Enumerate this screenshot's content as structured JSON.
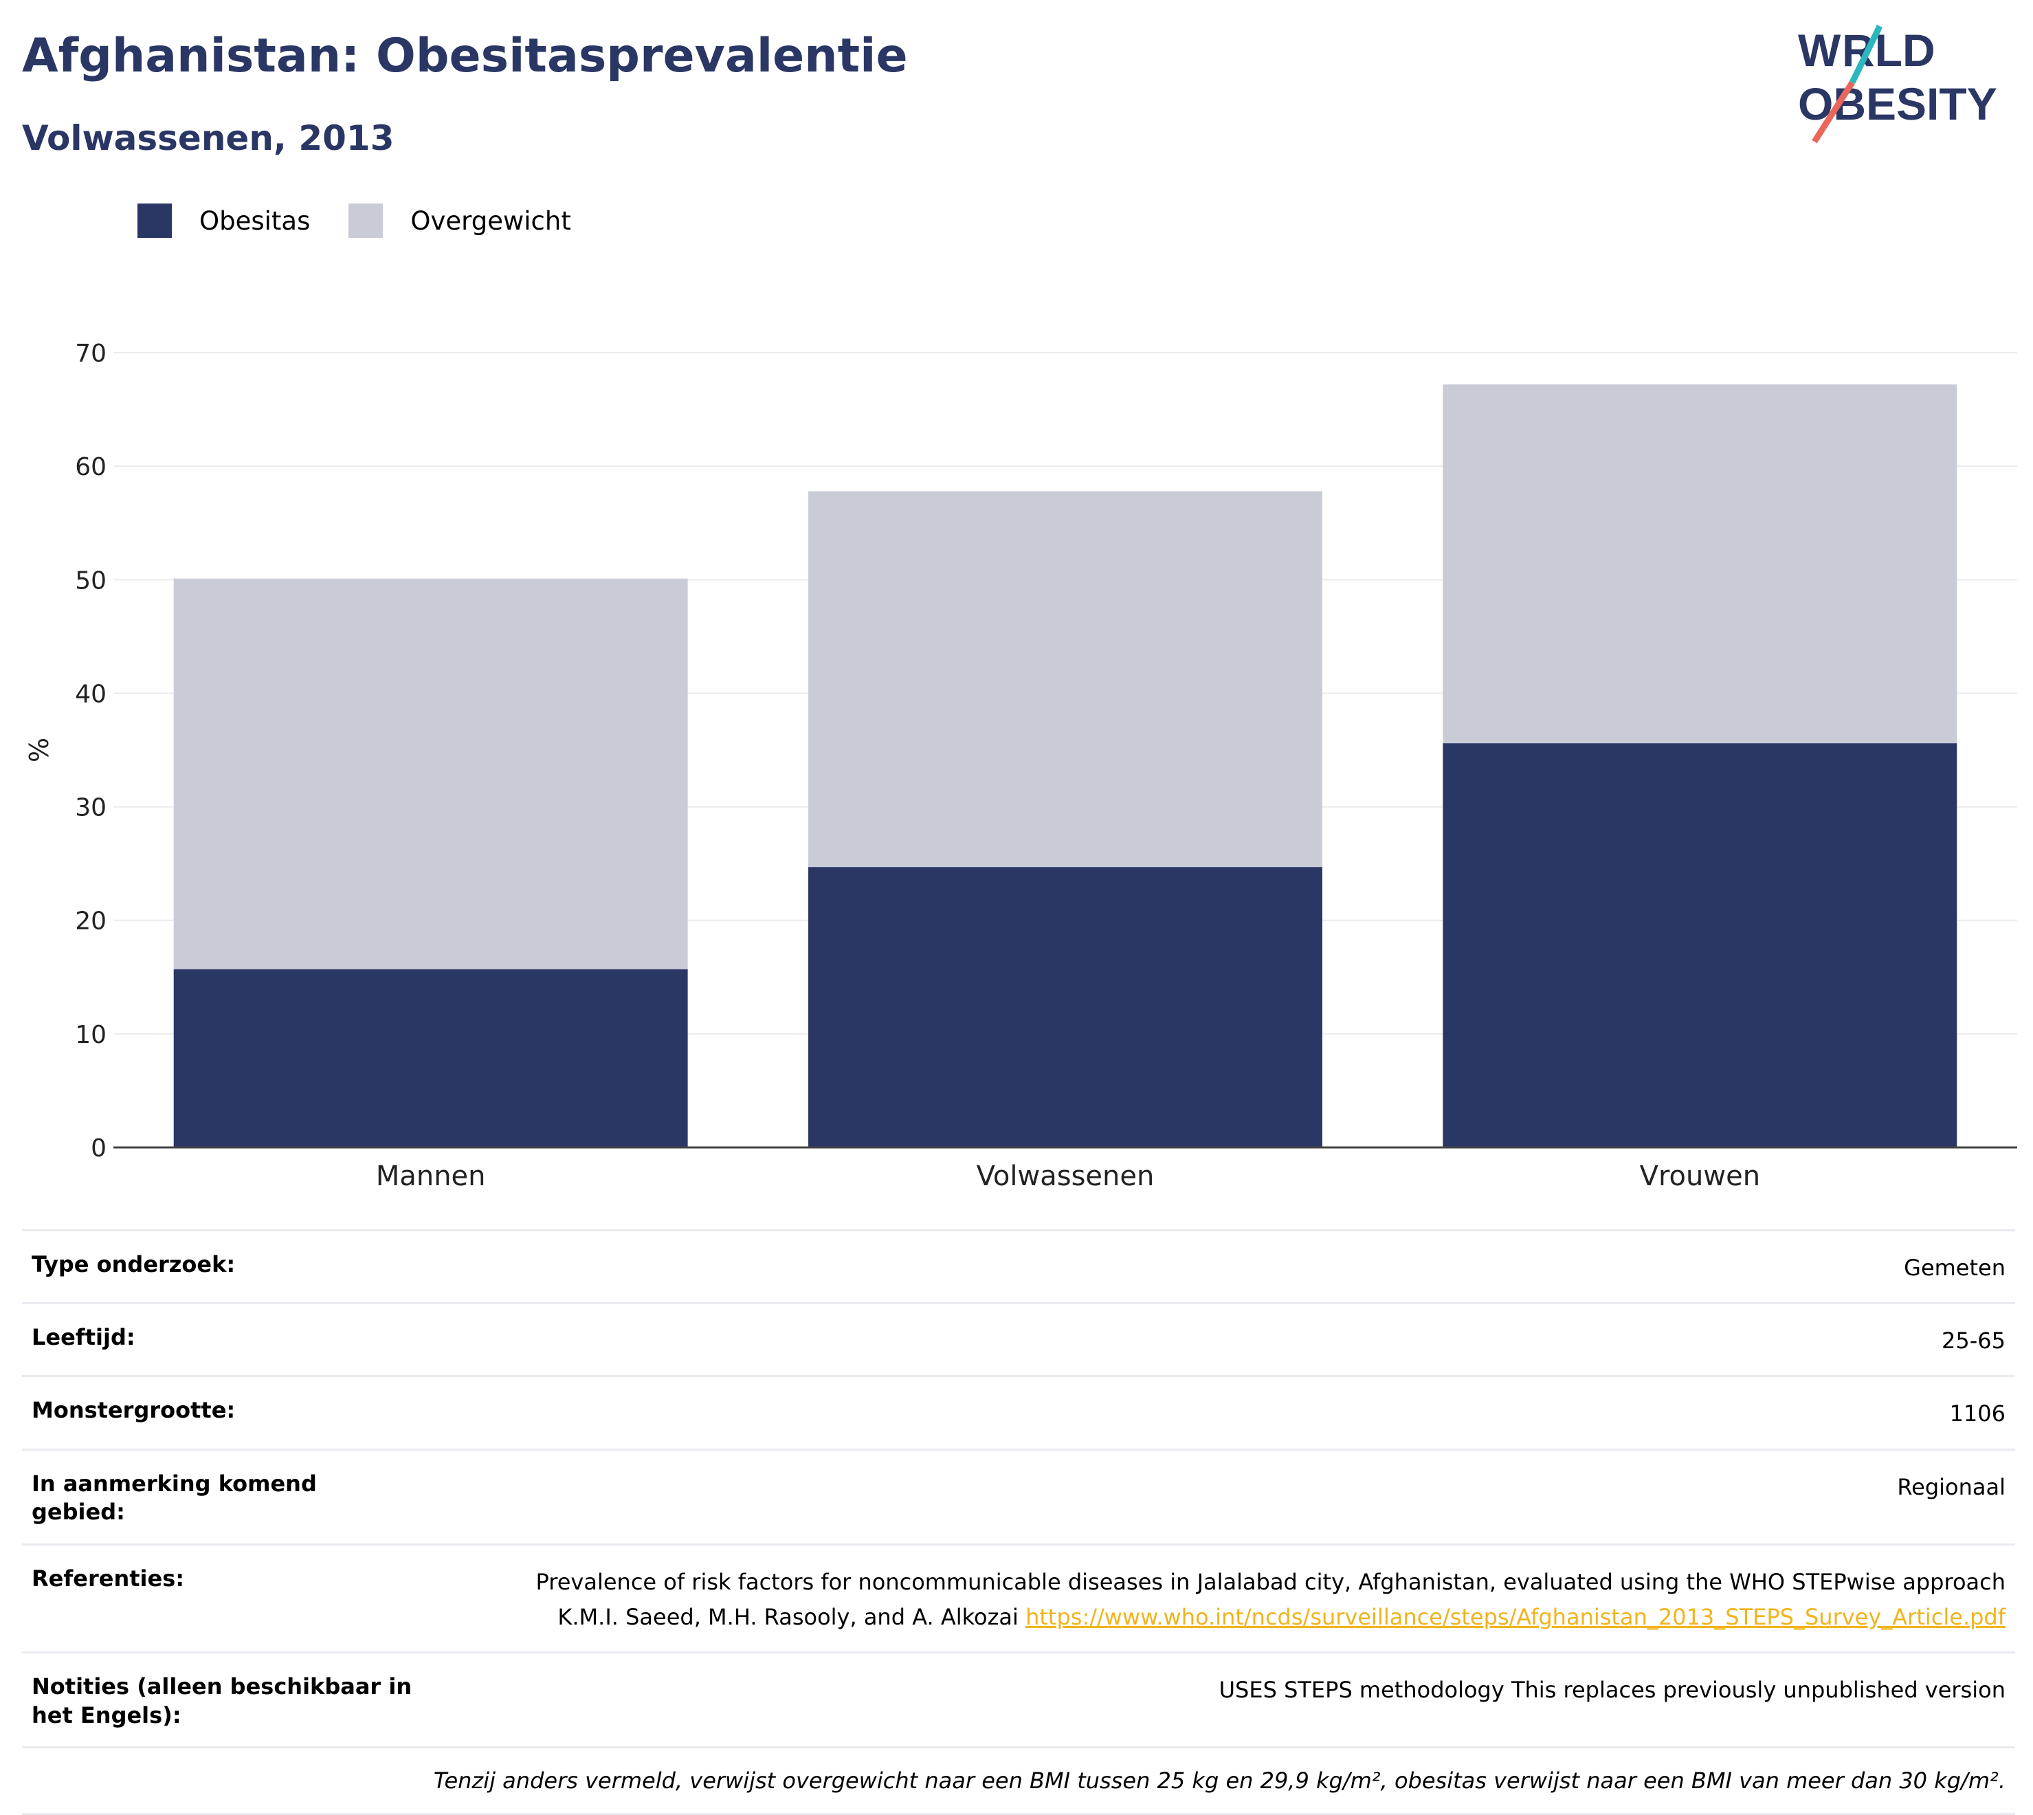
{
  "header": {
    "title": "Afghanistan: Obesitasprevalentie",
    "subtitle": "Volwassenen, 2013",
    "logo_line1": "WORLD",
    "logo_line2": "OBESITY"
  },
  "legend": {
    "items": [
      {
        "label": "Obesitas",
        "color": "#2a3664"
      },
      {
        "label": "Overgewicht",
        "color": "#c9cbd7"
      }
    ]
  },
  "chart_data": {
    "type": "bar",
    "stacked": true,
    "categories": [
      "Mannen",
      "Volwassenen",
      "Vrouwen"
    ],
    "series": [
      {
        "name": "Obesitas",
        "color": "#2a3664",
        "values": [
          15.7,
          24.7,
          35.6
        ]
      },
      {
        "name": "Overgewicht",
        "color": "#c9cbd7",
        "values": [
          34.4,
          33.1,
          31.6
        ]
      }
    ],
    "ylabel": "%",
    "ylim": [
      0,
      70
    ],
    "yticks": [
      0,
      10,
      20,
      30,
      40,
      50,
      60,
      70
    ],
    "grid": true,
    "legend_position": "top-left"
  },
  "info": {
    "rows": [
      {
        "label": "Type onderzoek:",
        "value": "Gemeten"
      },
      {
        "label": "Leeftijd:",
        "value": "25-65"
      },
      {
        "label": "Monstergrootte:",
        "value": "1106"
      },
      {
        "label": "In aanmerking komend gebied:",
        "value": "Regionaal"
      }
    ],
    "references": {
      "label": "Referenties:",
      "line1": "Prevalence of risk factors for noncommunicable diseases in Jalalabad city, Afghanistan, evaluated using the WHO STEPwise approach",
      "line2": "K.M.I. Saeed, M.H. Rasooly, and A. Alkozai",
      "link": "https://www.who.int/ncds/surveillance/steps/Afghanistan_2013_STEPS_Survey_Article.pdf"
    },
    "notes": {
      "label": "Notities (alleen beschikbaar in het Engels):",
      "value": "USES STEPS methodology This replaces previously unpublished version"
    },
    "footnote": "Tenzij anders vermeld, verwijst overgewicht naar een BMI tussen 25 kg en 29,9 kg/m², obesitas verwijst naar een BMI van meer dan 30 kg/m²."
  }
}
